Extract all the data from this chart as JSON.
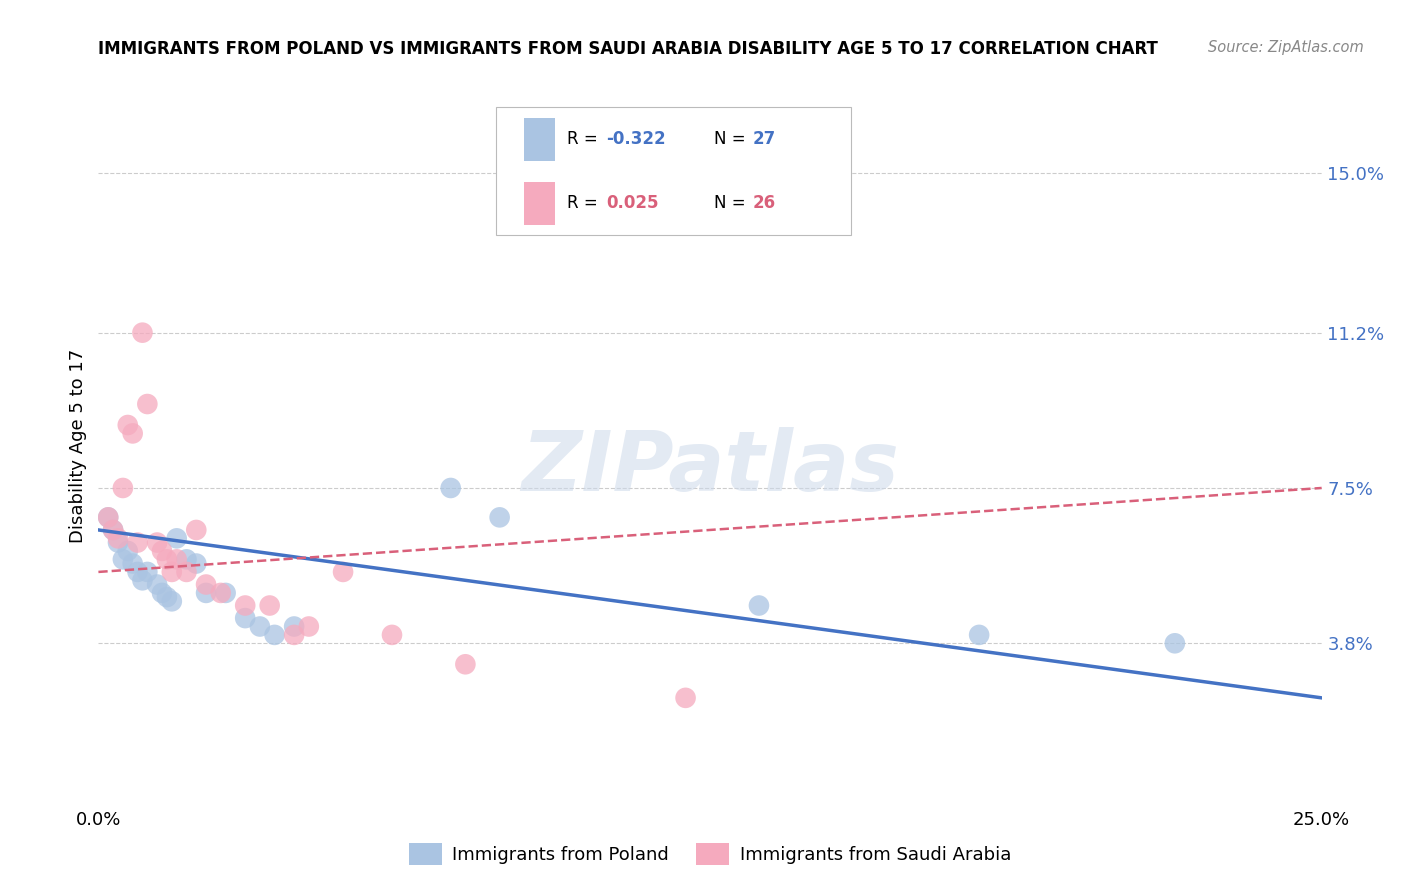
{
  "title": "IMMIGRANTS FROM POLAND VS IMMIGRANTS FROM SAUDI ARABIA DISABILITY AGE 5 TO 17 CORRELATION CHART",
  "source": "Source: ZipAtlas.com",
  "ylabel_label": "Disability Age 5 to 17",
  "xlim": [
    0.0,
    0.25
  ],
  "ylim": [
    0.0,
    0.17
  ],
  "ytick_vals": [
    0.038,
    0.075,
    0.112,
    0.15
  ],
  "ytick_labels": [
    "3.8%",
    "7.5%",
    "11.2%",
    "15.0%"
  ],
  "xtick_vals": [
    0.0,
    0.25
  ],
  "xtick_labels": [
    "0.0%",
    "25.0%"
  ],
  "poland_R": "-0.322",
  "poland_N": "27",
  "saudi_R": "0.025",
  "saudi_N": "26",
  "poland_color": "#aac4e2",
  "saudi_color": "#f5aabe",
  "poland_line_color": "#4472c4",
  "saudi_line_color": "#d9607a",
  "watermark": "ZIPatlas",
  "legend_label_poland": "Immigrants from Poland",
  "legend_label_saudi": "Immigrants from Saudi Arabia",
  "poland_x": [
    0.002,
    0.003,
    0.004,
    0.005,
    0.006,
    0.007,
    0.008,
    0.009,
    0.01,
    0.012,
    0.013,
    0.014,
    0.015,
    0.016,
    0.018,
    0.02,
    0.022,
    0.026,
    0.03,
    0.033,
    0.036,
    0.04,
    0.072,
    0.082,
    0.135,
    0.18,
    0.22
  ],
  "poland_y": [
    0.068,
    0.065,
    0.062,
    0.058,
    0.06,
    0.057,
    0.055,
    0.053,
    0.055,
    0.052,
    0.05,
    0.049,
    0.048,
    0.063,
    0.058,
    0.057,
    0.05,
    0.05,
    0.044,
    0.042,
    0.04,
    0.042,
    0.075,
    0.068,
    0.047,
    0.04,
    0.038
  ],
  "saudi_x": [
    0.002,
    0.003,
    0.004,
    0.005,
    0.006,
    0.007,
    0.008,
    0.009,
    0.01,
    0.012,
    0.013,
    0.014,
    0.015,
    0.016,
    0.018,
    0.02,
    0.022,
    0.025,
    0.03,
    0.035,
    0.04,
    0.043,
    0.05,
    0.06,
    0.075,
    0.12
  ],
  "saudi_y": [
    0.068,
    0.065,
    0.063,
    0.075,
    0.09,
    0.088,
    0.062,
    0.112,
    0.095,
    0.062,
    0.06,
    0.058,
    0.055,
    0.058,
    0.055,
    0.065,
    0.052,
    0.05,
    0.047,
    0.047,
    0.04,
    0.042,
    0.055,
    0.04,
    0.033,
    0.025
  ]
}
